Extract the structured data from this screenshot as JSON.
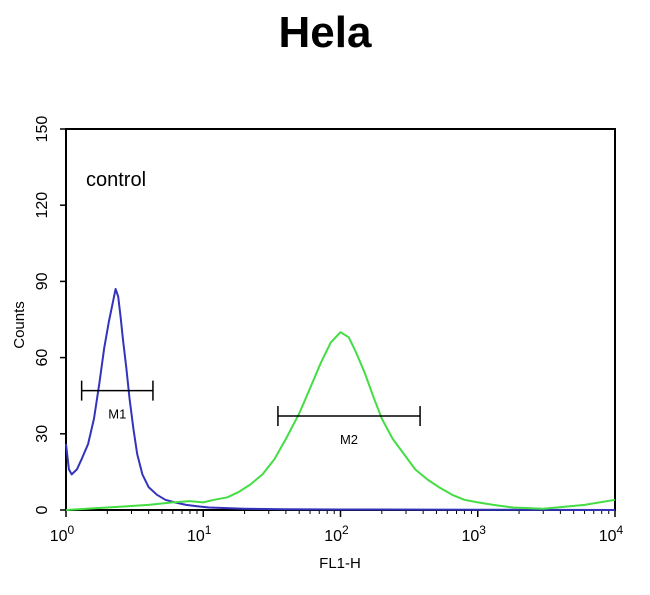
{
  "chart_data": {
    "type": "line",
    "title": "Hela",
    "xlabel": "FL1-H",
    "ylabel": "Counts",
    "x_scale": "log",
    "xlim": [
      1,
      10000
    ],
    "ylim": [
      0,
      150
    ],
    "x_ticks": [
      {
        "value": 1,
        "base": "10",
        "exp": "0"
      },
      {
        "value": 10,
        "base": "10",
        "exp": "1"
      },
      {
        "value": 100,
        "base": "10",
        "exp": "2"
      },
      {
        "value": 1000,
        "base": "10",
        "exp": "3"
      },
      {
        "value": 10000,
        "base": "10",
        "exp": "4"
      }
    ],
    "y_ticks": [
      "0",
      "30",
      "60",
      "90",
      "120",
      "150"
    ],
    "annotation": "control",
    "series": [
      {
        "color": "#3333bb",
        "x": [
          1,
          1.05,
          1.1,
          1.2,
          1.3,
          1.45,
          1.6,
          1.75,
          1.9,
          2.05,
          2.2,
          2.3,
          2.4,
          2.5,
          2.6,
          2.75,
          2.9,
          3.1,
          3.3,
          3.6,
          4,
          4.6,
          5.3,
          6.2,
          7.5,
          9,
          11,
          14,
          20,
          40,
          100,
          1000,
          10000
        ],
        "y": [
          26,
          16,
          14,
          16,
          20,
          26,
          36,
          50,
          64,
          74,
          82,
          87,
          84,
          76,
          67,
          56,
          44,
          32,
          22,
          14,
          9,
          6,
          4,
          3,
          2,
          1.5,
          1,
          0.8,
          0.5,
          0.3,
          0.2,
          0.1,
          0
        ]
      },
      {
        "color": "#44dd44",
        "x": [
          1,
          2,
          4,
          6,
          8,
          10,
          12,
          15,
          18,
          22,
          27,
          33,
          40,
          50,
          60,
          72,
          85,
          100,
          115,
          130,
          150,
          175,
          200,
          240,
          290,
          350,
          430,
          520,
          650,
          800,
          1000,
          1300,
          1800,
          3000,
          6000,
          10000
        ],
        "y": [
          0,
          1,
          2,
          3,
          3.5,
          3,
          4,
          5,
          7,
          10,
          14,
          20,
          28,
          38,
          48,
          58,
          66,
          70,
          68,
          62,
          54,
          44,
          36,
          28,
          22,
          16,
          12,
          9,
          6,
          4,
          3,
          2,
          1,
          0.5,
          2,
          4
        ]
      }
    ],
    "markers": [
      {
        "label": "M1",
        "x_start": 1.3,
        "x_end": 4.3,
        "y": 47
      },
      {
        "label": "M2",
        "x_start": 35,
        "x_end": 380,
        "y": 37
      }
    ]
  }
}
